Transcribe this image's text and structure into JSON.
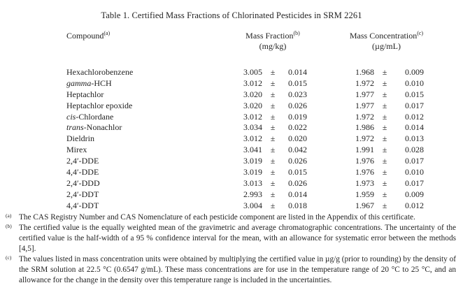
{
  "title": "Table 1.  Certified Mass Fractions of Chlorinated Pesticides in SRM 2261",
  "table": {
    "headers": {
      "compound": "Compound",
      "compound_note": "(a)",
      "mass_fraction": "Mass Fraction",
      "mass_fraction_note": "(b)",
      "mass_fraction_unit": "(mg/kg)",
      "mass_concentration": "Mass Concentration",
      "mass_concentration_note": "(c)",
      "mass_concentration_unit": "(µg/mL)"
    },
    "plus_minus": "±",
    "rows": [
      {
        "compound_italic": "",
        "compound": "Hexachlorobenzene",
        "mass_fraction": "3.005",
        "mass_fraction_unc": "0.014",
        "mass_concentration": "1.968",
        "mass_concentration_unc": "0.009"
      },
      {
        "compound_italic": "gamma",
        "compound": "-HCH",
        "mass_fraction": "3.012",
        "mass_fraction_unc": "0.015",
        "mass_concentration": "1.972",
        "mass_concentration_unc": "0.010"
      },
      {
        "compound_italic": "",
        "compound": "Heptachlor",
        "mass_fraction": "3.020",
        "mass_fraction_unc": "0.023",
        "mass_concentration": "1.977",
        "mass_concentration_unc": "0.015"
      },
      {
        "compound_italic": "",
        "compound": "Heptachlor epoxide",
        "mass_fraction": "3.020",
        "mass_fraction_unc": "0.026",
        "mass_concentration": "1.977",
        "mass_concentration_unc": "0.017"
      },
      {
        "compound_italic": "cis",
        "compound": "-Chlordane",
        "mass_fraction": "3.012",
        "mass_fraction_unc": "0.019",
        "mass_concentration": "1.972",
        "mass_concentration_unc": "0.012"
      },
      {
        "compound_italic": "trans",
        "compound": "-Nonachlor",
        "mass_fraction": "3.034",
        "mass_fraction_unc": "0.022",
        "mass_concentration": "1.986",
        "mass_concentration_unc": "0.014"
      },
      {
        "compound_italic": "",
        "compound": "Dieldrin",
        "mass_fraction": "3.012",
        "mass_fraction_unc": "0.020",
        "mass_concentration": "1.972",
        "mass_concentration_unc": "0.013"
      },
      {
        "compound_italic": "",
        "compound": "Mirex",
        "mass_fraction": "3.041",
        "mass_fraction_unc": "0.042",
        "mass_concentration": "1.991",
        "mass_concentration_unc": "0.028"
      },
      {
        "compound_italic": "",
        "compound": "2,4′-DDE",
        "mass_fraction": "3.019",
        "mass_fraction_unc": "0.026",
        "mass_concentration": "1.976",
        "mass_concentration_unc": "0.017"
      },
      {
        "compound_italic": "",
        "compound": "4,4′-DDE",
        "mass_fraction": "3.019",
        "mass_fraction_unc": "0.015",
        "mass_concentration": "1.976",
        "mass_concentration_unc": "0.010"
      },
      {
        "compound_italic": "",
        "compound": "2,4′-DDD",
        "mass_fraction": "3.013",
        "mass_fraction_unc": "0.026",
        "mass_concentration": "1.973",
        "mass_concentration_unc": "0.017"
      },
      {
        "compound_italic": "",
        "compound": "2,4′-DDT",
        "mass_fraction": "2.993",
        "mass_fraction_unc": "0.014",
        "mass_concentration": "1.959",
        "mass_concentration_unc": "0.009"
      },
      {
        "compound_italic": "",
        "compound": "4,4′-DDT",
        "mass_fraction": "3.004",
        "mass_fraction_unc": "0.018",
        "mass_concentration": "1.967",
        "mass_concentration_unc": "0.012"
      }
    ]
  },
  "footnotes": [
    {
      "marker": "(a)",
      "text": "The CAS Registry Number and CAS Nomenclature of each pesticide component are listed in the Appendix of this certificate."
    },
    {
      "marker": "(b)",
      "text": "The certified value is the equally weighted mean of the gravimetric and average chromatographic concentrations. The uncertainty of the certified value is the half-width of a 95 % confidence interval for the mean, with an allowance for systematic error between the methods [4,5]."
    },
    {
      "marker": "(c)",
      "text": "The values listed in mass concentration units were obtained by multiplying the certified value in µg/g (prior to rounding) by the density of the SRM solution at 22.5 °C (0.6547 g/mL).  These mass concentrations are for use in the temperature range of 20 °C to 25 °C, and an allowance for the change in the density over this temperature range is included in the uncertainties."
    }
  ]
}
